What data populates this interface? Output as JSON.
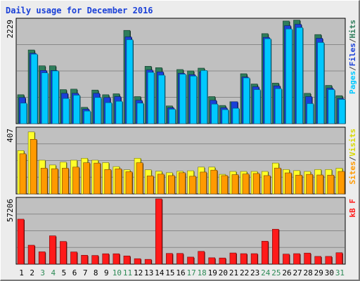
{
  "chart_data": {
    "type": "bar",
    "title": "Daily usage for December 2016",
    "days": [
      "1",
      "2",
      "3",
      "4",
      "5",
      "6",
      "7",
      "8",
      "9",
      "10",
      "11",
      "12",
      "13",
      "14",
      "15",
      "16",
      "17",
      "18",
      "19",
      "20",
      "21",
      "22",
      "23",
      "24",
      "25",
      "26",
      "27",
      "28",
      "29",
      "30",
      "31"
    ],
    "weekend_days": [
      "3",
      "4",
      "10",
      "11",
      "17",
      "18",
      "24",
      "25",
      "31"
    ],
    "colors": {
      "hits": "#2e7d5b",
      "files": "#1a40d8",
      "pages": "#00c8ff",
      "visits": "#ffff2a",
      "sites": "#ff9a00",
      "kbytes": "#ff1a1a",
      "label_blue": "#1a40d8",
      "label_green": "#2e7d5b",
      "label_cyan": "#00c8ff",
      "label_yellow": "#d8d800",
      "label_orange": "#ff9a00",
      "label_red": "#ff1a1a",
      "weekend_label": "#2e8b57",
      "weekday_label": "#000000",
      "plot_bg": "#c0c0c0",
      "gridline": "#888888"
    },
    "panels": [
      {
        "id": "hits-files-pages",
        "ymax_label": "2229",
        "ymax": 2229,
        "legend": [
          "Pages",
          "/",
          "Files",
          "/",
          "Hits"
        ],
        "series": [
          {
            "name": "Hits",
            "values": [
              620,
              1580,
              1240,
              1240,
              730,
              740,
              350,
              720,
              620,
              640,
              2000,
              580,
              1230,
              1200,
              380,
              1160,
              1130,
              1190,
              580,
              390,
              470,
              1070,
              850,
              1930,
              870,
              2200,
              2220,
              650,
              1910,
              820,
              600
            ]
          },
          {
            "name": "Files",
            "values": [
              560,
              1510,
              1140,
              1140,
              650,
              650,
              310,
              650,
              560,
              580,
              1860,
              500,
              1150,
              1110,
              340,
              1080,
              1050,
              1110,
              500,
              340,
              470,
              1000,
              790,
              1850,
              810,
              2100,
              2130,
              580,
              1830,
              760,
              540
            ]
          },
          {
            "name": "Pages",
            "values": [
              440,
              1490,
              1090,
              1130,
              540,
              610,
              270,
              560,
              450,
              480,
              1800,
              440,
              1100,
              1040,
              310,
              1060,
              1020,
              1140,
              420,
              300,
              330,
              980,
              730,
              1820,
              750,
              2030,
              2060,
              430,
              1740,
              730,
              520
            ]
          }
        ]
      },
      {
        "id": "visits-sites",
        "ymax_label": "407",
        "ymax": 407,
        "legend": [
          "Sites",
          "/",
          "Visits"
        ],
        "series": [
          {
            "name": "Visits",
            "values": [
              270,
              386,
              210,
              180,
              198,
              210,
              222,
              210,
              195,
              170,
              150,
              222,
              150,
              141,
              132,
              141,
              144,
              167,
              167,
              122,
              140,
              140,
              140,
              140,
              192,
              152,
              145,
              140,
              152,
              152,
              160
            ]
          },
          {
            "name": "Sites",
            "values": [
              250,
              340,
              160,
              157,
              160,
              167,
              194,
              192,
              152,
              156,
              138,
              194,
              112,
              123,
              114,
              132,
              110,
              136,
              148,
              114,
              120,
              124,
              127,
              114,
              161,
              131,
              117,
              122,
              118,
              117,
              140
            ]
          }
        ]
      },
      {
        "id": "kbytes",
        "ymax_label": "57206",
        "ymax": 57206,
        "legend": [
          "kB",
          "F"
        ],
        "series": [
          {
            "name": "kB F",
            "values": [
              39400,
              16600,
              10800,
              24800,
              19900,
              10700,
              7800,
              7600,
              9100,
              9100,
              7200,
              4800,
              4200,
              57200,
              9400,
              9400,
              6200,
              11200,
              5600,
              5400,
              9800,
              9200,
              9200,
              20100,
              30600,
              8800,
              9200,
              9700,
              6800,
              6800,
              10000
            ]
          }
        ]
      }
    ]
  }
}
